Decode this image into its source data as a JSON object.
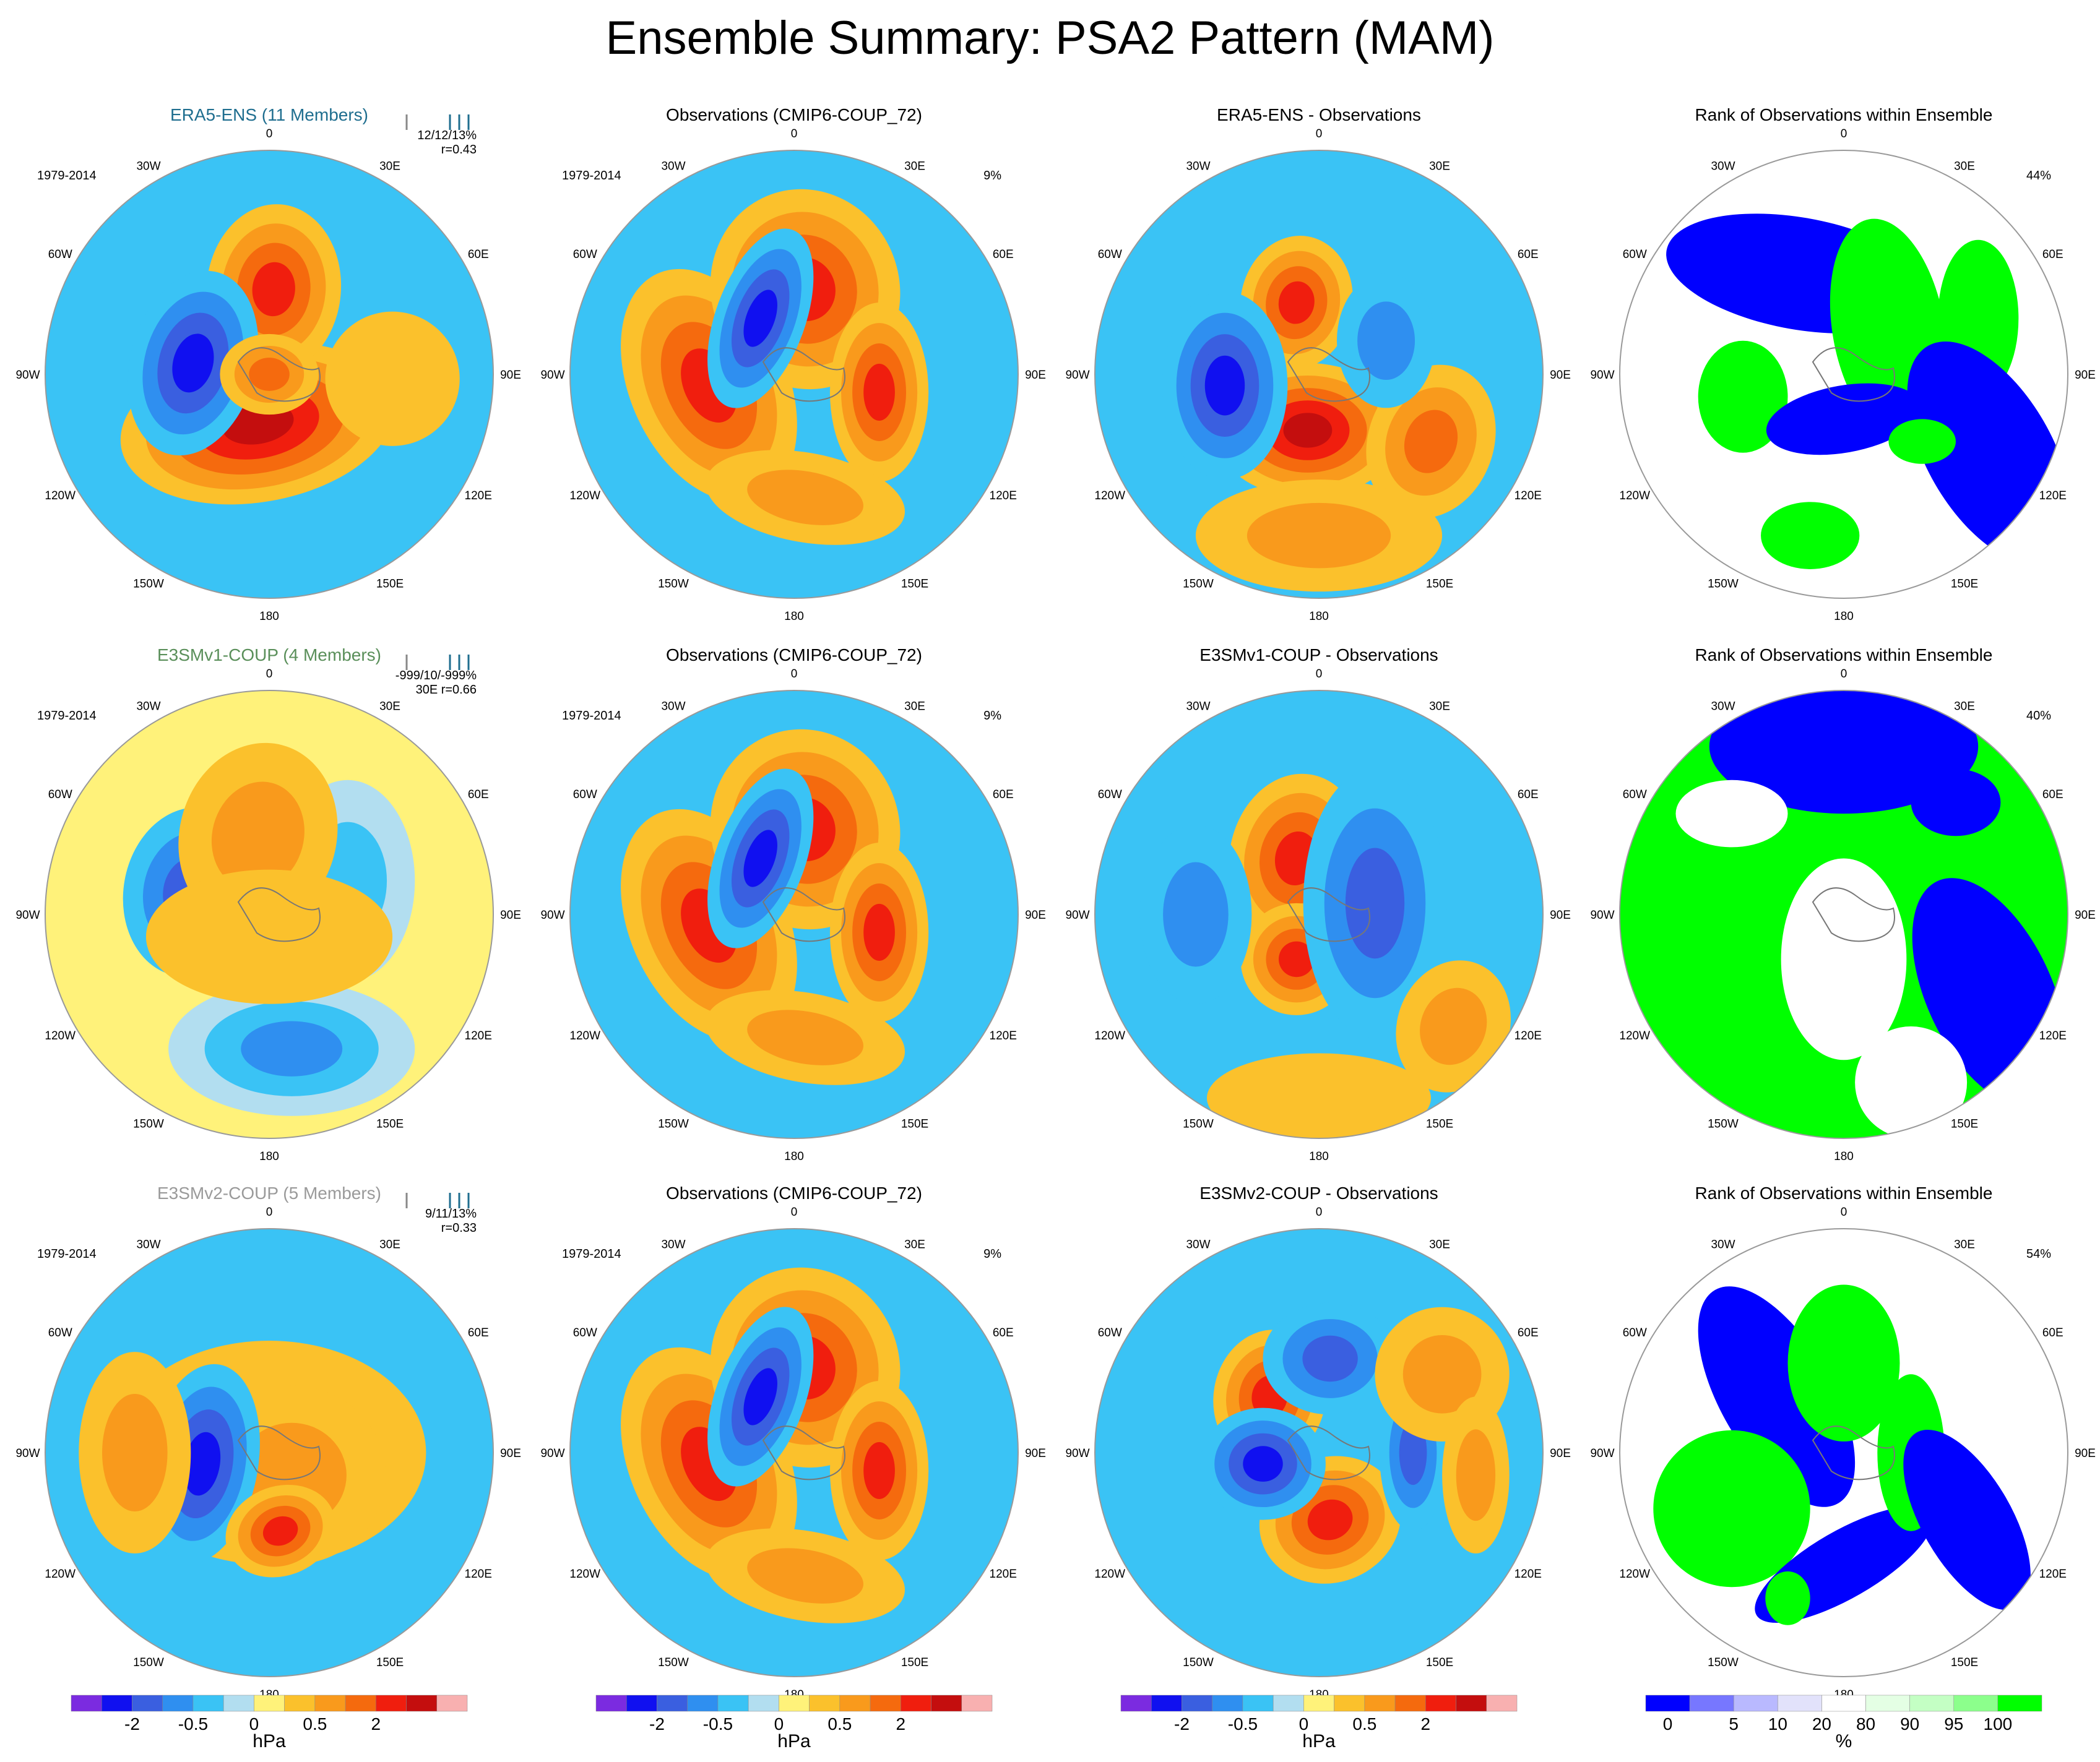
{
  "title": "Ensemble Summary: PSA2 Pattern (MAM)",
  "colors": {
    "anomaly_scale": [
      "#7b2be0",
      "#1010f0",
      "#3a5fe0",
      "#2f8ff0",
      "#3ac3f5",
      "#b2def0",
      "#fff27a",
      "#fbc12c",
      "#f99a1c",
      "#f56a0e",
      "#f01e0e",
      "#c40e0e",
      "#f8b0b0"
    ],
    "rank_scale": [
      "#0000ff",
      "#7777ff",
      "#b9b9ff",
      "#e2e2fb",
      "#ffffff",
      "#e4ffe4",
      "#c4ffc4",
      "#8cff8c",
      "#00ff00"
    ]
  },
  "chart_data": [
    {
      "type": "heatmap",
      "title": "ERA5-ENS (11 Members)",
      "title_color": "#1f6e8f",
      "years": "1979-2014",
      "stat": "12/12/13%",
      "stat2": "r=0.43"
    },
    {
      "type": "heatmap",
      "title": "Observations (CMIP6-COUP_72)",
      "years": "1979-2014",
      "stat": "9%"
    },
    {
      "type": "heatmap",
      "title": "ERA5-ENS - Observations"
    },
    {
      "type": "heatmap",
      "title": "Rank of Observations within Ensemble",
      "stat": "44%"
    },
    {
      "type": "heatmap",
      "title": "E3SMv1-COUP (4 Members)",
      "title_color": "#5a8f5a",
      "years": "1979-2014",
      "stat": "-999/10/-999%",
      "stat2": "30E r=0.66"
    },
    {
      "type": "heatmap",
      "title": "Observations (CMIP6-COUP_72)",
      "years": "1979-2014",
      "stat": "9%"
    },
    {
      "type": "heatmap",
      "title": "E3SMv1-COUP - Observations"
    },
    {
      "type": "heatmap",
      "title": "Rank of Observations within Ensemble",
      "stat": "40%"
    },
    {
      "type": "heatmap",
      "title": "E3SMv2-COUP (5 Members)",
      "title_color": "#9a9a9a",
      "years": "1979-2014",
      "stat": "9/11/13%",
      "stat2": "r=0.33"
    },
    {
      "type": "heatmap",
      "title": "Observations (CMIP6-COUP_72)",
      "years": "1979-2014",
      "stat": "9%"
    },
    {
      "type": "heatmap",
      "title": "E3SMv2-COUP - Observations"
    },
    {
      "type": "heatmap",
      "title": "Rank of Observations within Ensemble",
      "stat": "54%"
    }
  ],
  "lon_labels": [
    "0",
    "30E",
    "60E",
    "90E",
    "120E",
    "150E",
    "180",
    "150W",
    "120W",
    "90W",
    "60W",
    "30W"
  ],
  "colorbars": [
    {
      "unit": "hPa",
      "ticks": [
        "-2",
        "-0.5",
        "0",
        "0.5",
        "2"
      ]
    },
    {
      "unit": "hPa",
      "ticks": [
        "-2",
        "-0.5",
        "0",
        "0.5",
        "2"
      ]
    },
    {
      "unit": "hPa",
      "ticks": [
        "-2",
        "-0.5",
        "0",
        "0.5",
        "2"
      ]
    },
    {
      "unit": "%",
      "ticks": [
        "0",
        "5",
        "10",
        "20",
        "80",
        "90",
        "95",
        "100"
      ]
    }
  ]
}
